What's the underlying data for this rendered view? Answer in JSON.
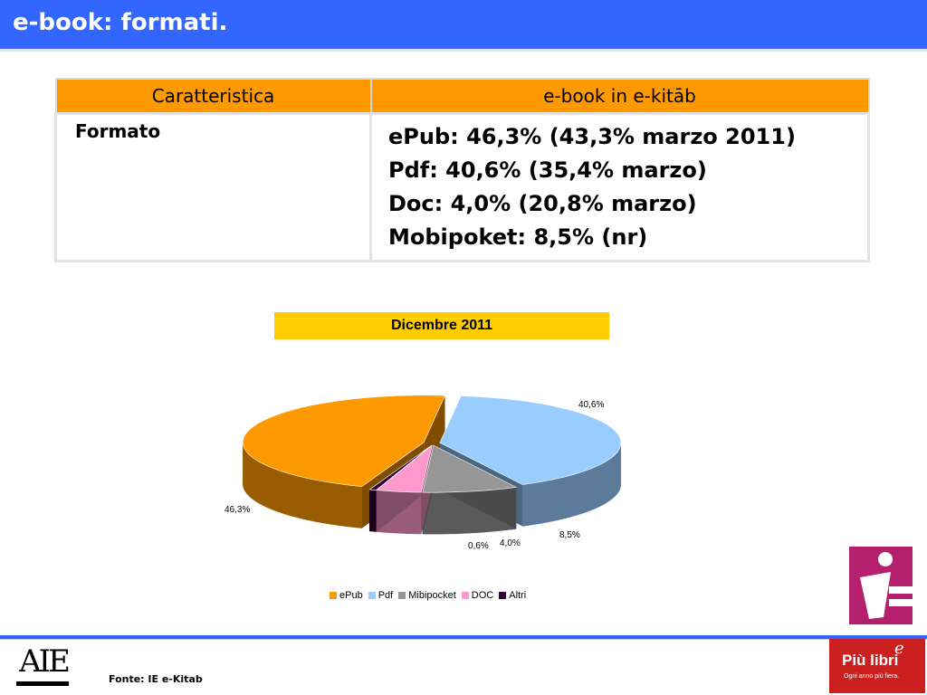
{
  "slide": {
    "title": "e-book: formati."
  },
  "table": {
    "headers": [
      "Caratteristica",
      "e-book in e-kitāb"
    ],
    "rows": [
      {
        "label": "Formato",
        "values": [
          "ePub: 46,3% (43,3% marzo 2011)",
          "Pdf: 40,6% (35,4% marzo)",
          "Doc: 4,0% (20,8% marzo)",
          "Mobipoket: 8,5% (nr)"
        ]
      }
    ]
  },
  "chart_data": {
    "type": "pie",
    "title": "Dicembre 2011",
    "series": [
      {
        "name": "ePub",
        "value": 46.3,
        "label": "46,3%",
        "color": "#ff9900"
      },
      {
        "name": "Pdf",
        "value": 40.6,
        "label": "40,6%",
        "color": "#99ccff"
      },
      {
        "name": "Mibipocket",
        "value": 8.5,
        "label": "8,5%",
        "color": "#969696"
      },
      {
        "name": "DOC",
        "value": 4.0,
        "label": "4,0%",
        "color": "#ff99cc"
      },
      {
        "name": "Altri",
        "value": 0.6,
        "label": "0,6%",
        "color": "#330033"
      }
    ],
    "legend_position": "bottom",
    "three_d": true,
    "exploded": true
  },
  "footer": {
    "source": "Fonte: IE e-Kitab"
  },
  "logos": {
    "left": {
      "text": "AIE"
    },
    "right_top": {
      "name": "i-logo"
    },
    "right_bottom": {
      "text": "Più libri",
      "superscript": "e",
      "tagline": "Ogni anno più fiera."
    }
  },
  "colors": {
    "title_bar": "#3366ff",
    "table_header": "#ff9900",
    "chart_title_bg": "#ffcc00",
    "brand_red": "#cc1f1f",
    "brand_magenta": "#b5206e"
  }
}
